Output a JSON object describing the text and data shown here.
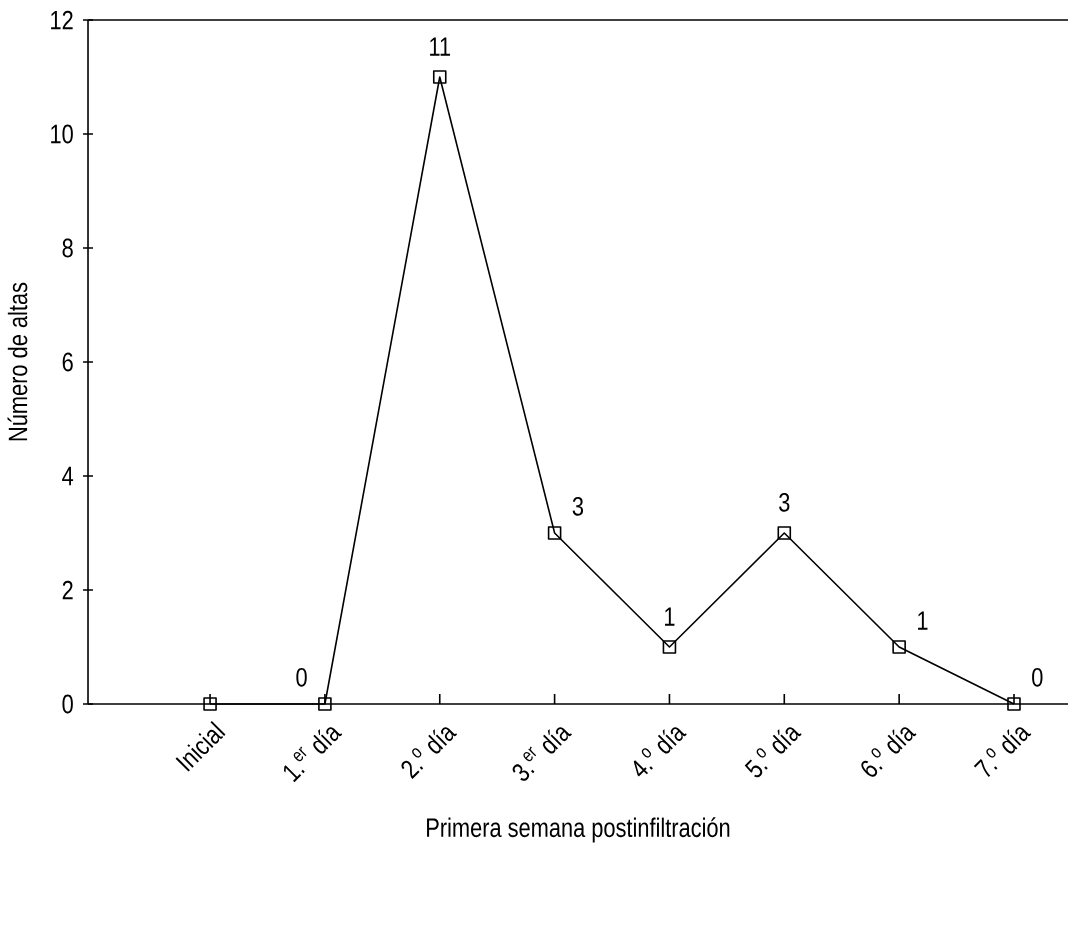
{
  "chart_data": {
    "type": "line",
    "xlabel": "Primera semana postinfiltración",
    "ylabel": "Número de altas",
    "categories": [
      "Inicial",
      "1.$^{er}$ día",
      "2.$^{o}$ día",
      "3.$^{er}$ día",
      "4.$^{o}$ día",
      "5.$^{o}$ día",
      "6.$^{o}$ día",
      "7.$^{o}$ día"
    ],
    "values": [
      0,
      0,
      11,
      3,
      1,
      3,
      1,
      0
    ],
    "value_labels": [
      null,
      "0",
      "11",
      "3",
      "1",
      "3",
      "1",
      "0"
    ],
    "color": "#000000",
    "marker": "square",
    "line_style": "solid",
    "ylim": [
      0,
      12
    ],
    "yticks": [
      0,
      2,
      4,
      6,
      8,
      10,
      12
    ],
    "grid": false
  }
}
